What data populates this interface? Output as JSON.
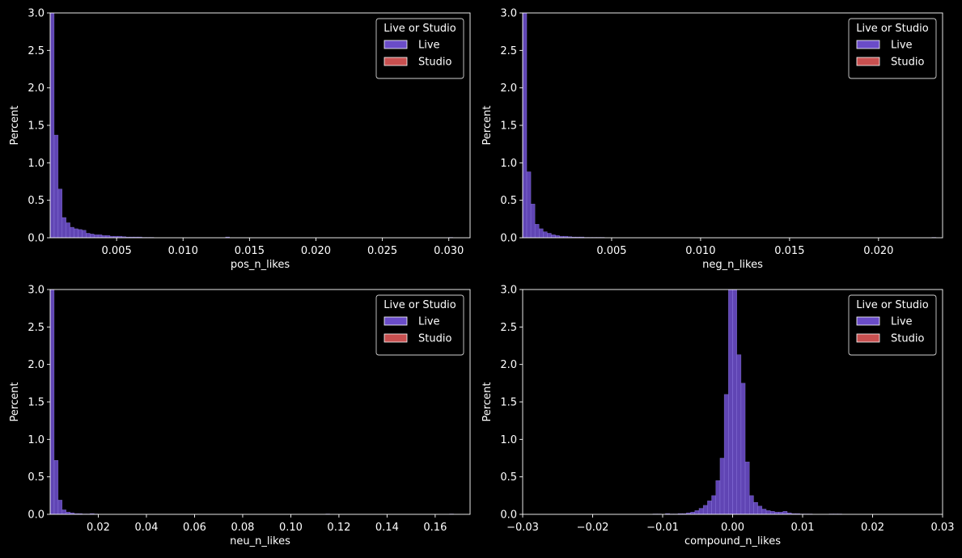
{
  "colors": {
    "background": "#000000",
    "axis": "#ffffff",
    "live": "#6a4cc8",
    "live_edge": "#9f8cf0",
    "studio": "#c85050",
    "legend_border": "#cfcfcf"
  },
  "legend": {
    "title": "Live or Studio",
    "entries": [
      "Live",
      "Studio"
    ],
    "placement": "top-right"
  },
  "chart_data": [
    {
      "type": "bar",
      "xlabel": "pos_n_likes",
      "ylabel": "Percent",
      "xlim": [
        0,
        0.0316
      ],
      "ylim": [
        0,
        3.0
      ],
      "xticks": [
        0.005,
        0.01,
        0.015,
        0.02,
        0.025,
        0.03
      ],
      "xtick_labels": [
        "0.005",
        "0.010",
        "0.015",
        "0.020",
        "0.025",
        "0.030"
      ],
      "yticks": [
        0.0,
        0.5,
        1.0,
        1.5,
        2.0,
        2.5,
        3.0
      ],
      "ytick_labels": [
        "0.0",
        "0.5",
        "1.0",
        "1.5",
        "2.0",
        "2.5",
        "3.0"
      ],
      "bin_start": 0,
      "bin_width": 0.0003,
      "series": [
        {
          "name": "Live",
          "values": [
            3.0,
            1.37,
            0.65,
            0.27,
            0.2,
            0.14,
            0.12,
            0.11,
            0.1,
            0.06,
            0.05,
            0.04,
            0.04,
            0.03,
            0.03,
            0.02,
            0.02,
            0.02,
            0.015,
            0.01,
            0.01,
            0.01,
            0.01,
            0.005,
            0.005,
            0.005,
            0.0,
            0.0,
            0.0,
            0.0,
            0.0,
            0.0,
            0.0,
            0.0,
            0.0,
            0.0,
            0.0,
            0.0,
            0.0,
            0.0,
            0.0,
            0.0,
            0.0,
            0.0,
            0.01,
            0.0,
            0.0,
            0.0,
            0.0,
            0.0,
            0.0,
            0.0,
            0.0,
            0.0,
            0.0,
            0.0,
            0.0,
            0.0,
            0.0,
            0.0,
            0.0,
            0.0,
            0.0,
            0.0,
            0.0,
            0.0,
            0.0,
            0.0,
            0.0,
            0.0,
            0.0,
            0.0,
            0.0,
            0.0,
            0.0,
            0.0,
            0.0,
            0.0,
            0.0,
            0.0,
            0.0,
            0.0,
            0.0,
            0.0,
            0.0,
            0.0,
            0.0,
            0.0,
            0.0,
            0.0,
            0.0,
            0.0,
            0.0,
            0.0,
            0.0,
            0.0,
            0.0,
            0.0,
            0.0,
            0.0,
            0.005
          ]
        },
        {
          "name": "Studio",
          "values": []
        }
      ]
    },
    {
      "type": "bar",
      "xlabel": "neg_n_likes",
      "ylabel": "Percent",
      "xlim": [
        0,
        0.0236
      ],
      "ylim": [
        0,
        3.0
      ],
      "xticks": [
        0.005,
        0.01,
        0.015,
        0.02
      ],
      "xtick_labels": [
        "0.005",
        "0.010",
        "0.015",
        "0.020"
      ],
      "yticks": [
        0.0,
        0.5,
        1.0,
        1.5,
        2.0,
        2.5,
        3.0
      ],
      "ytick_labels": [
        "0.0",
        "0.5",
        "1.0",
        "1.5",
        "2.0",
        "2.5",
        "3.0"
      ],
      "bin_start": 0,
      "bin_width": 0.00023,
      "series": [
        {
          "name": "Live",
          "values": [
            3.0,
            0.88,
            0.45,
            0.18,
            0.12,
            0.08,
            0.06,
            0.04,
            0.03,
            0.02,
            0.02,
            0.015,
            0.01,
            0.01,
            0.01,
            0.005,
            0.005,
            0.005,
            0.005,
            0.005,
            0.0,
            0.0,
            0.0,
            0.0,
            0.0,
            0.0,
            0.0,
            0.0,
            0.0,
            0.0,
            0.0,
            0.0,
            0.0,
            0.0,
            0.0,
            0.0,
            0.0,
            0.0,
            0.0,
            0.0,
            0.0,
            0.0,
            0.0,
            0.0,
            0.0,
            0.0,
            0.0,
            0.0,
            0.0,
            0.0,
            0.0,
            0.0,
            0.0,
            0.0,
            0.0,
            0.0,
            0.0,
            0.0,
            0.0,
            0.0,
            0.0,
            0.0,
            0.0,
            0.0,
            0.0,
            0.0,
            0.0,
            0.0,
            0.0,
            0.0,
            0.0,
            0.0,
            0.0,
            0.0,
            0.0,
            0.0,
            0.0,
            0.0,
            0.0,
            0.0,
            0.0,
            0.0,
            0.0,
            0.0,
            0.0,
            0.0,
            0.0,
            0.0,
            0.0,
            0.0,
            0.0,
            0.0,
            0.0,
            0.0,
            0.0,
            0.0,
            0.0,
            0.0,
            0.0,
            0.0,
            0.005
          ]
        },
        {
          "name": "Studio",
          "values": []
        }
      ]
    },
    {
      "type": "bar",
      "xlabel": "neu_n_likes",
      "ylabel": "Percent",
      "xlim": [
        0,
        0.1745
      ],
      "ylim": [
        0,
        3.0
      ],
      "xticks": [
        0.02,
        0.04,
        0.06,
        0.08,
        0.1,
        0.12,
        0.14,
        0.16
      ],
      "xtick_labels": [
        "0.02",
        "0.04",
        "0.06",
        "0.08",
        "0.10",
        "0.12",
        "0.14",
        "0.16"
      ],
      "yticks": [
        0.0,
        0.5,
        1.0,
        1.5,
        2.0,
        2.5,
        3.0
      ],
      "ytick_labels": [
        "0.0",
        "0.5",
        "1.0",
        "1.5",
        "2.0",
        "2.5",
        "3.0"
      ],
      "bin_start": 0,
      "bin_width": 0.00166,
      "series": [
        {
          "name": "Live",
          "values": [
            3.0,
            0.72,
            0.19,
            0.06,
            0.03,
            0.02,
            0.01,
            0.01,
            0.005,
            0.005,
            0.01,
            0.005,
            0.0,
            0.0,
            0.0,
            0.0,
            0.0,
            0.0,
            0.0,
            0.0,
            0.0,
            0.0,
            0.0,
            0.0,
            0.0,
            0.0,
            0.0,
            0.0,
            0.0,
            0.0,
            0.0,
            0.0,
            0.0,
            0.0,
            0.0,
            0.0,
            0.0,
            0.0,
            0.0,
            0.0,
            0.0,
            0.0,
            0.0,
            0.0,
            0.0,
            0.0,
            0.0,
            0.0,
            0.0,
            0.0,
            0.0,
            0.0,
            0.0,
            0.0,
            0.0,
            0.0,
            0.0,
            0.0,
            0.0,
            0.0,
            0.0,
            0.0,
            0.0,
            0.0,
            0.0,
            0.0,
            0.0,
            0.0,
            0.0,
            0.005,
            0.0,
            0.0,
            0.0,
            0.0,
            0.0,
            0.0,
            0.0,
            0.0,
            0.0,
            0.0,
            0.0,
            0.0,
            0.0,
            0.0,
            0.0,
            0.0,
            0.0,
            0.0,
            0.0,
            0.0,
            0.0,
            0.0,
            0.0,
            0.0,
            0.0,
            0.0,
            0.0,
            0.0,
            0.0,
            0.0,
            0.005
          ]
        },
        {
          "name": "Studio",
          "values": []
        }
      ]
    },
    {
      "type": "bar",
      "xlabel": "compound_n_likes",
      "ylabel": "Percent",
      "xlim": [
        -0.03,
        0.03
      ],
      "ylim": [
        0,
        3.0
      ],
      "xticks": [
        -0.03,
        -0.02,
        -0.01,
        0.0,
        0.01,
        0.02,
        0.03
      ],
      "xtick_labels": [
        "−0.03",
        "−0.02",
        "−0.01",
        "0.00",
        "0.01",
        "0.02",
        "0.03"
      ],
      "yticks": [
        0.0,
        0.5,
        1.0,
        1.5,
        2.0,
        2.5,
        3.0
      ],
      "ytick_labels": [
        "0.0",
        "0.5",
        "1.0",
        "1.5",
        "2.0",
        "2.5",
        "3.0"
      ],
      "bin_start": -0.0114,
      "bin_width": 0.0006,
      "series": [
        {
          "name": "Live",
          "values": [
            0.005,
            0.005,
            0.0,
            0.01,
            0.005,
            0.005,
            0.01,
            0.01,
            0.02,
            0.03,
            0.05,
            0.08,
            0.12,
            0.18,
            0.25,
            0.45,
            0.75,
            1.6,
            3.0,
            3.0,
            2.13,
            1.75,
            0.7,
            0.25,
            0.16,
            0.11,
            0.07,
            0.05,
            0.04,
            0.03,
            0.03,
            0.04,
            0.02,
            0.01,
            0.01,
            0.005,
            0.005,
            0.005,
            0.0,
            0.0,
            0.0,
            0.0,
            0.005,
            0.005,
            0.005
          ]
        },
        {
          "name": "Studio",
          "values": []
        }
      ]
    }
  ]
}
